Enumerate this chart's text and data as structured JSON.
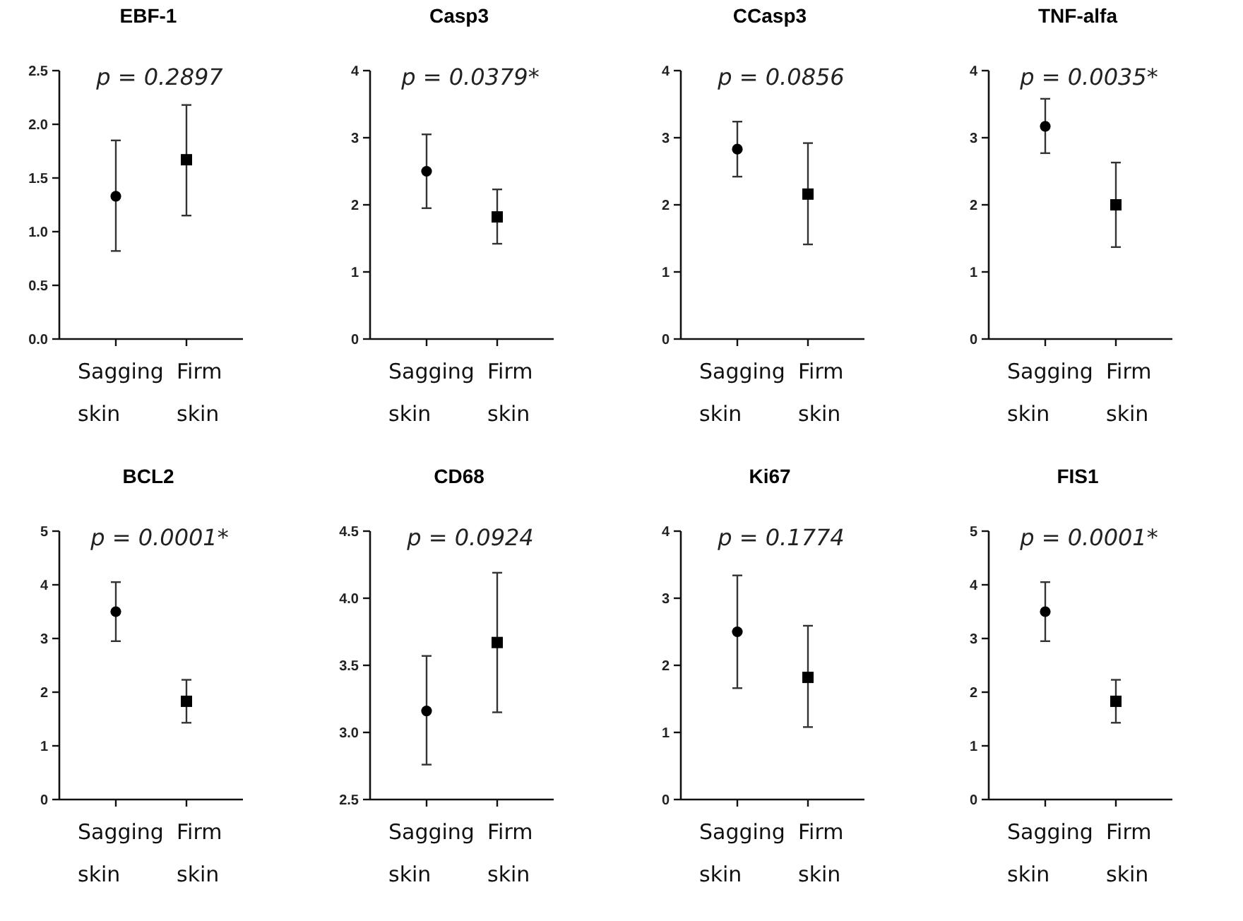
{
  "chart_data": [
    {
      "type": "scatter",
      "title": "EBF-1",
      "annotations": [
        "p = 0.2897"
      ],
      "categories": [
        "Sagging skin",
        "Firm skin"
      ],
      "ylim": [
        0,
        2.5
      ],
      "yticks": [
        {
          "value": 0,
          "label": "0.0"
        },
        0.5,
        {
          "value": 1,
          "label": "1.0"
        },
        1.5,
        {
          "value": 2,
          "label": "2.0"
        },
        2.5
      ],
      "series": [
        {
          "x": [
            "Sagging skin"
          ],
          "values": [
            1.33
          ],
          "errors": [
            [
              0.82,
              1.85
            ]
          ],
          "marker": "circle",
          "color": "#000000"
        },
        {
          "x": [
            "Firm skin"
          ],
          "values": [
            1.67
          ],
          "errors": [
            [
              1.15,
              2.18
            ]
          ],
          "marker": "square",
          "color": "#000000"
        }
      ]
    },
    {
      "type": "scatter",
      "title": "Casp3",
      "annotations": [
        "p = 0.0379*"
      ],
      "categories": [
        "Sagging skin",
        "Firm skin"
      ],
      "ylim": [
        0,
        4
      ],
      "yticks": [
        0,
        1,
        2,
        3,
        4
      ],
      "series": [
        {
          "x": [
            "Sagging skin"
          ],
          "values": [
            2.5
          ],
          "errors": [
            [
              1.95,
              3.05
            ]
          ],
          "marker": "circle",
          "color": "#000000"
        },
        {
          "x": [
            "Firm skin"
          ],
          "values": [
            1.82
          ],
          "errors": [
            [
              1.42,
              2.23
            ]
          ],
          "marker": "square",
          "color": "#000000"
        }
      ]
    },
    {
      "type": "scatter",
      "title": "CCasp3",
      "annotations": [
        "p = 0.0856"
      ],
      "categories": [
        "Sagging skin",
        "Firm skin"
      ],
      "ylim": [
        0,
        4
      ],
      "yticks": [
        0,
        1,
        2,
        3,
        4
      ],
      "series": [
        {
          "x": [
            "Sagging skin"
          ],
          "values": [
            2.83
          ],
          "errors": [
            [
              2.42,
              3.24
            ]
          ],
          "marker": "circle",
          "color": "#000000"
        },
        {
          "x": [
            "Firm skin"
          ],
          "values": [
            2.16
          ],
          "errors": [
            [
              1.41,
              2.92
            ]
          ],
          "marker": "square",
          "color": "#000000"
        }
      ]
    },
    {
      "type": "scatter",
      "title": "TNF-alfa",
      "annotations": [
        "p = 0.0035*"
      ],
      "categories": [
        "Sagging skin",
        "Firm skin"
      ],
      "ylim": [
        0,
        4
      ],
      "yticks": [
        0,
        1,
        2,
        3,
        4
      ],
      "series": [
        {
          "x": [
            "Sagging skin"
          ],
          "values": [
            3.17
          ],
          "errors": [
            [
              2.77,
              3.58
            ]
          ],
          "marker": "circle",
          "color": "#000000"
        },
        {
          "x": [
            "Firm skin"
          ],
          "values": [
            2.0
          ],
          "errors": [
            [
              1.37,
              2.63
            ]
          ],
          "marker": "square",
          "color": "#000000"
        }
      ]
    },
    {
      "type": "scatter",
      "title": "BCL2",
      "annotations": [
        "p = 0.0001*"
      ],
      "categories": [
        "Sagging skin",
        "Firm skin"
      ],
      "ylim": [
        0,
        5
      ],
      "yticks": [
        0,
        1,
        2,
        3,
        4,
        5
      ],
      "series": [
        {
          "x": [
            "Sagging skin"
          ],
          "values": [
            3.5
          ],
          "errors": [
            [
              2.95,
              4.05
            ]
          ],
          "marker": "circle",
          "color": "#000000"
        },
        {
          "x": [
            "Firm skin"
          ],
          "values": [
            1.83
          ],
          "errors": [
            [
              1.43,
              2.23
            ]
          ],
          "marker": "square",
          "color": "#000000"
        }
      ]
    },
    {
      "type": "scatter",
      "title": "CD68",
      "annotations": [
        "p = 0.0924"
      ],
      "categories": [
        "Sagging skin",
        "Firm skin"
      ],
      "ylim": [
        2.5,
        4.5
      ],
      "yticks": [
        2.5,
        {
          "value": 3,
          "label": "3.0"
        },
        3.5,
        {
          "value": 4,
          "label": "4.0"
        },
        4.5
      ],
      "series": [
        {
          "x": [
            "Sagging skin"
          ],
          "values": [
            3.16
          ],
          "errors": [
            [
              2.76,
              3.57
            ]
          ],
          "marker": "circle",
          "color": "#000000"
        },
        {
          "x": [
            "Firm skin"
          ],
          "values": [
            3.67
          ],
          "errors": [
            [
              3.15,
              4.19
            ]
          ],
          "marker": "square",
          "color": "#000000"
        }
      ]
    },
    {
      "type": "scatter",
      "title": "Ki67",
      "annotations": [
        "p = 0.1774"
      ],
      "categories": [
        "Sagging skin",
        "Firm skin"
      ],
      "ylim": [
        0,
        4
      ],
      "yticks": [
        0,
        1,
        2,
        3,
        4
      ],
      "series": [
        {
          "x": [
            "Sagging skin"
          ],
          "values": [
            2.5
          ],
          "errors": [
            [
              1.66,
              3.34
            ]
          ],
          "marker": "circle",
          "color": "#000000"
        },
        {
          "x": [
            "Firm skin"
          ],
          "values": [
            1.82
          ],
          "errors": [
            [
              1.08,
              2.59
            ]
          ],
          "marker": "square",
          "color": "#000000"
        }
      ]
    },
    {
      "type": "scatter",
      "title": "FIS1",
      "annotations": [
        "p = 0.0001*"
      ],
      "categories": [
        "Sagging skin",
        "Firm skin"
      ],
      "ylim": [
        0,
        5
      ],
      "yticks": [
        0,
        1,
        2,
        3,
        4,
        5
      ],
      "series": [
        {
          "x": [
            "Sagging skin"
          ],
          "values": [
            3.5
          ],
          "errors": [
            [
              2.95,
              4.05
            ]
          ],
          "marker": "circle",
          "color": "#000000"
        },
        {
          "x": [
            "Firm skin"
          ],
          "values": [
            1.83
          ],
          "errors": [
            [
              1.43,
              2.23
            ]
          ],
          "marker": "square",
          "color": "#000000"
        }
      ]
    }
  ]
}
